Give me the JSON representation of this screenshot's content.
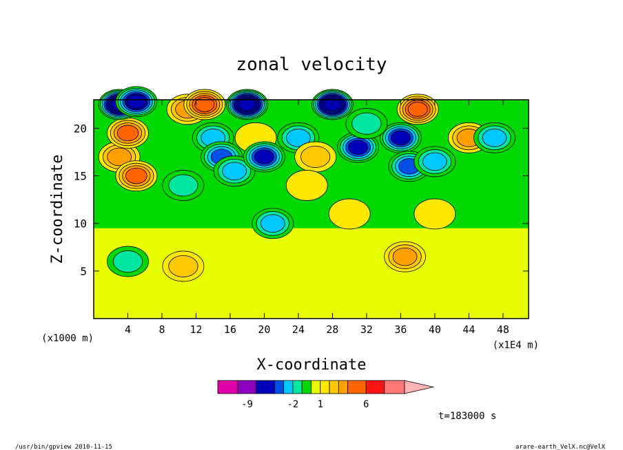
{
  "chart_data": {
    "type": "heatmap",
    "title": "zonal velocity",
    "xlabel": "X-coordinate",
    "ylabel": "Z-coordinate",
    "x_unit_label": "(x1E4 m)",
    "y_unit_label": "(x1000 m)",
    "xlim": [
      0,
      51
    ],
    "ylim": [
      0,
      23
    ],
    "x_ticks": [
      "4",
      "8",
      "12",
      "16",
      "20",
      "24",
      "28",
      "32",
      "36",
      "40",
      "44",
      "48"
    ],
    "x_tick_values": [
      4,
      8,
      12,
      16,
      20,
      24,
      28,
      32,
      36,
      40,
      44,
      48
    ],
    "y_ticks": [
      "5",
      "10",
      "15",
      "20"
    ],
    "y_tick_values": [
      5,
      10,
      15,
      20
    ],
    "colorbar": {
      "levels": [
        -12,
        -10,
        -8,
        -4,
        -3,
        -2,
        -1,
        0,
        1,
        2,
        3,
        4,
        6,
        8,
        10
      ],
      "colors": [
        "#e000a8",
        "#8c00c0",
        "#0000b8",
        "#0050e8",
        "#00c8ff",
        "#00e8a0",
        "#00d800",
        "#e8ff00",
        "#ffe800",
        "#ffc800",
        "#ffa000",
        "#ff6400",
        "#ff1414",
        "#ff7878",
        "#ffb4b4"
      ],
      "labels": [
        "-9",
        "-2",
        "1",
        "6"
      ],
      "label_values": [
        -9,
        -2,
        1,
        6
      ]
    },
    "blobs": [
      {
        "x": 3,
        "z": 17,
        "value": 4
      },
      {
        "x": 5,
        "z": 15,
        "value": 5
      },
      {
        "x": 4,
        "z": 19.5,
        "value": 5
      },
      {
        "x": 3,
        "z": 22.5,
        "value": -8
      },
      {
        "x": 5,
        "z": 22.8,
        "value": -6
      },
      {
        "x": 11,
        "z": 22,
        "value": 4
      },
      {
        "x": 13,
        "z": 22.5,
        "value": 6
      },
      {
        "x": 14,
        "z": 19,
        "value": -3
      },
      {
        "x": 15,
        "z": 17,
        "value": -4
      },
      {
        "x": 16.5,
        "z": 15.5,
        "value": -3
      },
      {
        "x": 10.5,
        "z": 14,
        "value": -2
      },
      {
        "x": 18,
        "z": 22.5,
        "value": -8
      },
      {
        "x": 19,
        "z": 19,
        "value": 2
      },
      {
        "x": 20,
        "z": 17,
        "value": -5
      },
      {
        "x": 24,
        "z": 19,
        "value": -3
      },
      {
        "x": 26,
        "z": 17,
        "value": 3
      },
      {
        "x": 25,
        "z": 14,
        "value": 2
      },
      {
        "x": 28,
        "z": 22.5,
        "value": -8
      },
      {
        "x": 31,
        "z": 18,
        "value": -5
      },
      {
        "x": 36,
        "z": 19,
        "value": -5
      },
      {
        "x": 37,
        "z": 16,
        "value": -4
      },
      {
        "x": 40,
        "z": 16.5,
        "value": -3
      },
      {
        "x": 38,
        "z": 22,
        "value": 6
      },
      {
        "x": 44,
        "z": 19,
        "value": 4
      },
      {
        "x": 47,
        "z": 19,
        "value": -3
      },
      {
        "x": 32,
        "z": 20.5,
        "value": -2
      },
      {
        "x": 36.5,
        "z": 6.5,
        "value": 4
      },
      {
        "x": 4,
        "z": 6,
        "value": -2
      },
      {
        "x": 10.5,
        "z": 5.5,
        "value": 3
      },
      {
        "x": 21,
        "z": 10,
        "value": -3
      },
      {
        "x": 30,
        "z": 11,
        "value": 2
      },
      {
        "x": 40,
        "z": 11,
        "value": 2
      }
    ]
  },
  "time_label": "t=183000 s",
  "footer_left": "/usr/bin/gpview  2010-11-15",
  "footer_right": "arare-earth_VelX.nc@VelX"
}
